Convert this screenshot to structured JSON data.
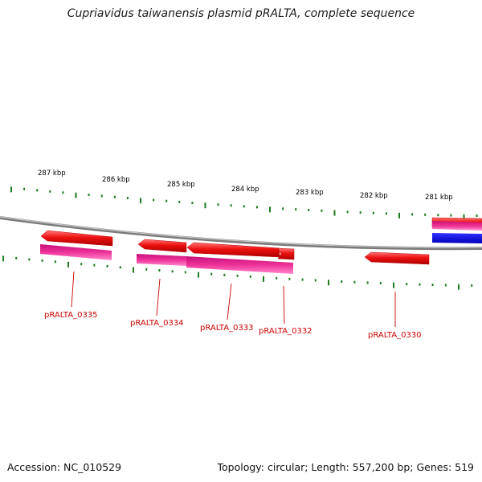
{
  "title": "Cupriavidus taiwanensis plasmid pRALTA, complete sequence",
  "footer": {
    "accession": "Accession: NC_010529",
    "summary": "Topology: circular; Length: 557,200 bp; Genes: 519"
  },
  "kbp_labels": [
    "287 kbp",
    "286 kbp",
    "285 kbp",
    "284 kbp",
    "283 kbp",
    "282 kbp",
    "281 kbp"
  ],
  "gene_labels": [
    "pRALTA_0335",
    "pRALTA_0334",
    "pRALTA_0333",
    "pRALTA_0332",
    "pRALTA_0330"
  ],
  "colors": {
    "backbone": "#8a8a8a",
    "tick": "#1f7a1f",
    "gene_arrow": "#ee1111",
    "cds_bar": "#ee3399",
    "blue_bar": "#1111ee",
    "label": "#cc0000"
  }
}
